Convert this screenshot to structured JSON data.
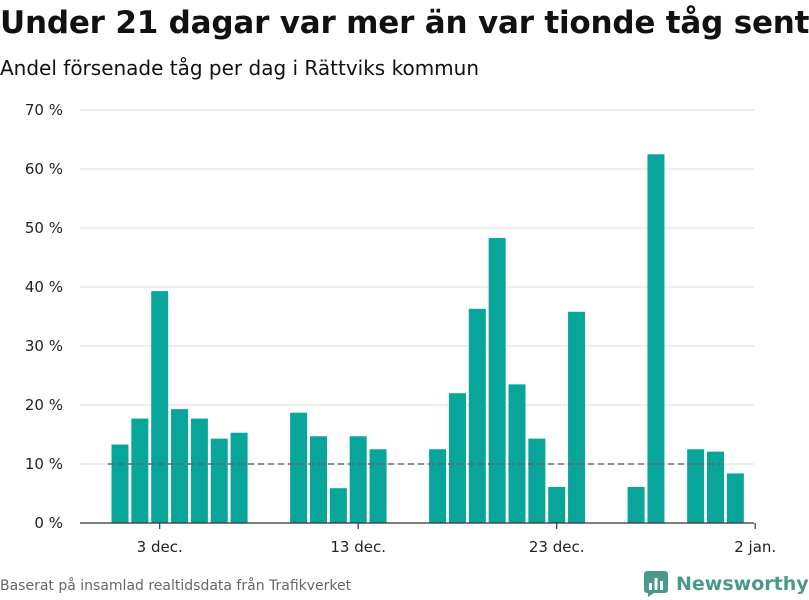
{
  "title": "Under 21 dagar var mer än var tionde tåg sent",
  "subtitle": "Andel försenade tåg per dag i Rättviks kommun",
  "source": "Baserat på insamlad realtidsdata från Trafikverket",
  "brand": {
    "name": "Newsworthy",
    "icon": "newsworthy-logo-icon",
    "color": "#4a9a8c"
  },
  "chart_data": {
    "type": "bar",
    "x_unit": "day",
    "x_start": "2023-12-01",
    "x_end": "2024-01-02",
    "values": [
      13.3,
      17.7,
      39.3,
      19.3,
      17.7,
      14.3,
      15.3,
      null,
      null,
      18.7,
      14.7,
      5.9,
      14.7,
      12.5,
      null,
      null,
      12.5,
      22.0,
      36.3,
      48.3,
      23.5,
      14.3,
      6.1,
      35.8,
      null,
      null,
      6.1,
      62.5,
      null,
      12.5,
      12.1,
      8.4
    ],
    "reference_line": {
      "value": 10,
      "style": "dashed",
      "color": "#666666"
    },
    "bar_color": "#08a69a",
    "ylim": [
      0,
      70
    ],
    "yticks": [
      0,
      10,
      20,
      30,
      40,
      50,
      60,
      70
    ],
    "ytick_labels": [
      "0 %",
      "10 %",
      "20 %",
      "30 %",
      "40 %",
      "50 %",
      "60 %",
      "70 %"
    ],
    "xticks": [
      {
        "date": "2023-12-03",
        "label": "3 dec."
      },
      {
        "date": "2023-12-13",
        "label": "13 dec."
      },
      {
        "date": "2023-12-23",
        "label": "23 dec."
      },
      {
        "date": "2024-01-02",
        "label": "2 jan."
      }
    ],
    "grid": true,
    "legend": "none"
  }
}
